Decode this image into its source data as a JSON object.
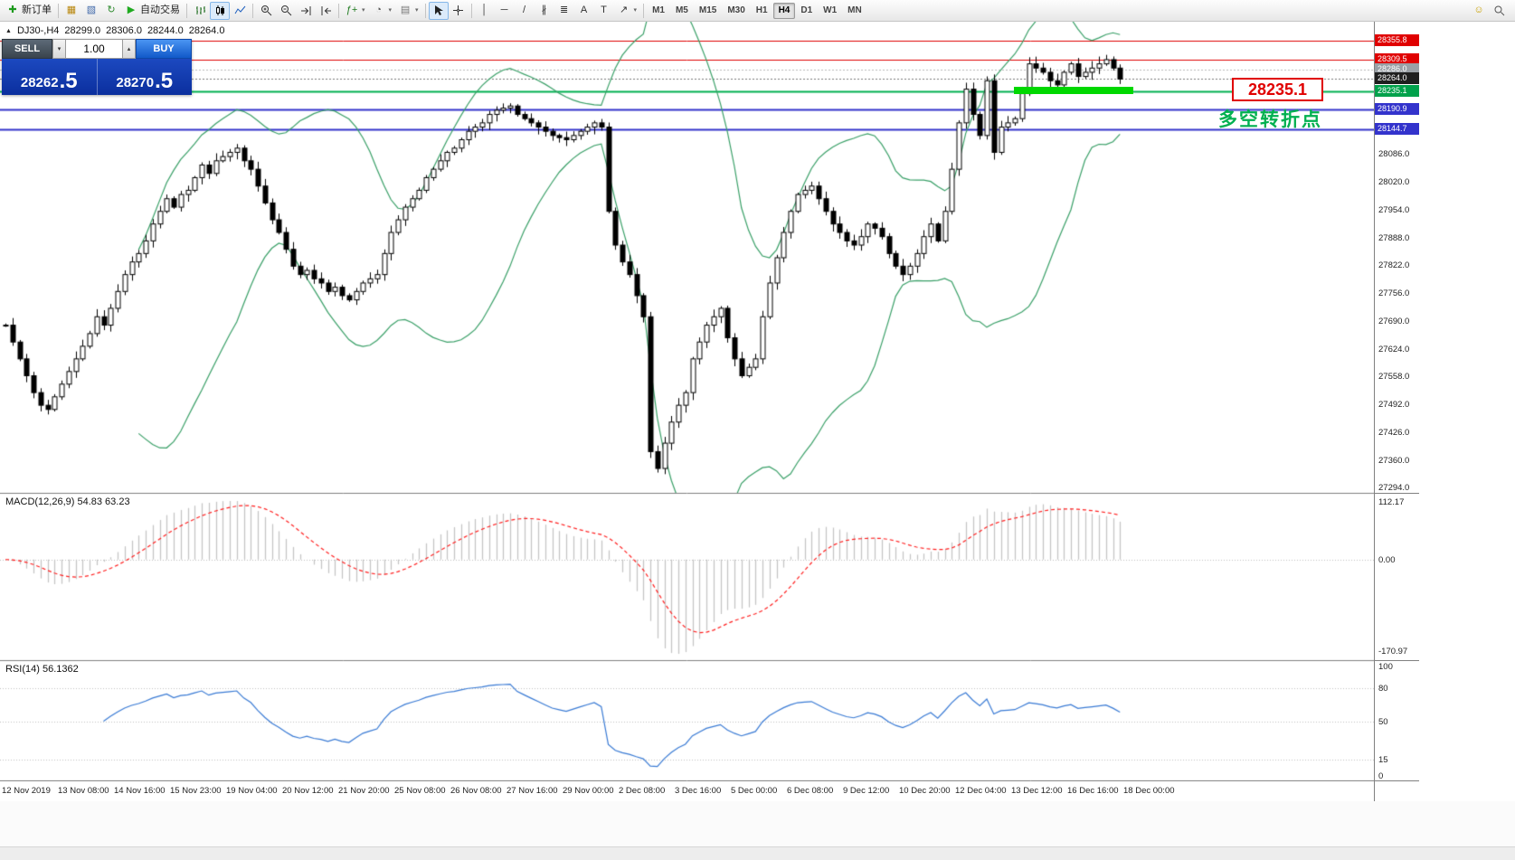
{
  "toolbar": {
    "items": [
      {
        "type": "button",
        "name": "new-order-button",
        "icon": "new-order-icon",
        "label": "新订单"
      },
      {
        "type": "sep"
      },
      {
        "type": "button",
        "name": "new-chart-button",
        "icon": "new-chart-icon"
      },
      {
        "type": "button",
        "name": "profiles-button",
        "icon": "profiles-icon"
      },
      {
        "type": "button",
        "name": "refresh-button",
        "icon": "refresh-icon"
      },
      {
        "type": "button",
        "name": "autotrading-button",
        "icon": "autotrading-icon",
        "label": "自动交易"
      },
      {
        "type": "sep"
      },
      {
        "type": "button",
        "name": "bar-chart-button",
        "icon": "bar-chart-icon"
      },
      {
        "type": "button",
        "name": "candlestick-chart-button",
        "icon": "candlestick-chart-icon",
        "active": true
      },
      {
        "type": "button",
        "name": "line-chart-button",
        "icon": "line-chart-icon"
      },
      {
        "type": "sep"
      },
      {
        "type": "button",
        "name": "zoom-in-button",
        "icon": "zoom-in-icon"
      },
      {
        "type": "button",
        "name": "zoom-out-button",
        "icon": "zoom-out-icon"
      },
      {
        "type": "button",
        "name": "auto-scroll-button",
        "icon": "auto-scroll-icon"
      },
      {
        "type": "button",
        "name": "chart-shift-button",
        "icon": "chart-shift-icon"
      },
      {
        "type": "sep"
      },
      {
        "type": "button",
        "name": "indicators-button",
        "icon": "indicators-icon",
        "dropdown": true
      },
      {
        "type": "button",
        "name": "periods-button",
        "icon": "periods-icon",
        "dropdown": true
      },
      {
        "type": "button",
        "name": "templates-button",
        "icon": "templates-icon",
        "dropdown": true
      },
      {
        "type": "sep"
      },
      {
        "type": "button",
        "name": "cursor-button",
        "icon": "cursor-icon",
        "active": true
      },
      {
        "type": "button",
        "name": "crosshair-button",
        "icon": "crosshair-icon"
      },
      {
        "type": "sep"
      },
      {
        "type": "button",
        "name": "vertical-line-button",
        "icon": "vertical-line-icon"
      },
      {
        "type": "button",
        "name": "horizontal-line-button",
        "icon": "horizontal-line-icon"
      },
      {
        "type": "button",
        "name": "trendline-button",
        "icon": "trendline-icon"
      },
      {
        "type": "button",
        "name": "channel-button",
        "icon": "channel-icon"
      },
      {
        "type": "button",
        "name": "fibonacci-button",
        "icon": "fibonacci-icon"
      },
      {
        "type": "button",
        "name": "text-button",
        "icon": "text-icon"
      },
      {
        "type": "button",
        "name": "label-button",
        "icon": "label-icon"
      },
      {
        "type": "button",
        "name": "arrows-button",
        "icon": "arrows-icon",
        "dropdown": true
      },
      {
        "type": "sep"
      }
    ],
    "timeframes": {
      "items": [
        "M1",
        "M5",
        "M15",
        "M30",
        "H1",
        "H4",
        "D1",
        "W1",
        "MN"
      ],
      "active": "H4"
    },
    "right_buttons": [
      {
        "name": "community-button",
        "icon": "community-icon"
      },
      {
        "name": "search-button",
        "icon": "search-icon"
      }
    ]
  },
  "chart": {
    "ohlc_header": {
      "marker": "▲",
      "symbol_period": "DJ30-,H4",
      "open": "28299.0",
      "high": "28306.0",
      "low": "28244.0",
      "close": "28264.0"
    },
    "trade_panel": {
      "sell_label": "SELL",
      "buy_label": "BUY",
      "volume": "1.00",
      "volume_down_glyph": "▾",
      "volume_up_glyph": "▴",
      "sell_price": "28262.5",
      "buy_price": "28270.5"
    },
    "annotations": {
      "price_callout": "28235.1",
      "turning_point_text": "多空转折点"
    },
    "lines": [
      {
        "label": "28355.8",
        "price": 28355.8,
        "color": "#e00000",
        "badge": "#e00000",
        "style": "solid",
        "width": 1
      },
      {
        "label": "28309.5",
        "price": 28309.5,
        "color": "#e00000",
        "badge": "#e00000",
        "style": "solid",
        "width": 1
      },
      {
        "label": "28286.0",
        "price": 28286.0,
        "color": "#b8b8b8",
        "badge": "#9aa0a6",
        "style": "dotted",
        "width": 1
      },
      {
        "label": "28264.0",
        "price": 28264.0,
        "color": "#777777",
        "badge": "#1f1f1f",
        "style": "dotted",
        "width": 1
      },
      {
        "label": "28235.1",
        "price": 28235.1,
        "color": "#00b050",
        "badge": "#00a14b",
        "style": "solid",
        "width": 2
      },
      {
        "label": "28190.9",
        "price": 28190.9,
        "color": "#3333cc",
        "badge": "#3333cc",
        "style": "solid",
        "width": 2
      },
      {
        "label": "28144.7",
        "price": 28144.7,
        "color": "#3333cc",
        "badge": "#3333cc",
        "style": "solid",
        "width": 2
      }
    ],
    "price_scale_ticks": [
      "28086.0",
      "28020.0",
      "27954.0",
      "27888.0",
      "27822.0",
      "27756.0",
      "27690.0",
      "27624.0",
      "27558.0",
      "27492.0",
      "27426.0",
      "27360.0",
      "27294.0"
    ],
    "indicators": {
      "macd": {
        "label": "MACD(12,26,9) 54.83 63.23",
        "scale": [
          "112.17",
          "0.00",
          "-170.97"
        ]
      },
      "rsi": {
        "label": "RSI(14) 56.1362",
        "scale": [
          "100",
          "80",
          "50",
          "15",
          "0"
        ],
        "levels": [
          80,
          50,
          15
        ]
      }
    },
    "time_axis": [
      "12 Nov 2019",
      "13 Nov 08:00",
      "14 Nov 16:00",
      "15 Nov 23:00",
      "19 Nov 04:00",
      "20 Nov 12:00",
      "21 Nov 20:00",
      "25 Nov 08:00",
      "26 Nov 08:00",
      "27 Nov 16:00",
      "29 Nov 00:00",
      "2 Dec 08:00",
      "3 Dec 16:00",
      "5 Dec 00:00",
      "6 Dec 08:00",
      "9 Dec 12:00",
      "10 Dec 20:00",
      "12 Dec 04:00",
      "13 Dec 12:00",
      "16 Dec 16:00",
      "18 Dec 00:00"
    ]
  },
  "chart_data": [
    {
      "type": "candlestick",
      "title": "DJ30-,H4",
      "symbol": "DJ30-",
      "timeframe": "H4",
      "last_ohlc": {
        "open": 28299.0,
        "high": 28306.0,
        "low": 28244.0,
        "close": 28264.0
      },
      "y_range": [
        27280,
        28400
      ],
      "overlays": [
        {
          "name": "Bollinger Bands (20, 2)",
          "color": "#3aa068"
        }
      ],
      "closes": [
        27680,
        27640,
        27600,
        27560,
        27520,
        27490,
        27480,
        27510,
        27540,
        27570,
        27600,
        27630,
        27660,
        27700,
        27680,
        27720,
        27760,
        27800,
        27830,
        27850,
        27880,
        27920,
        27950,
        27980,
        27960,
        27990,
        28000,
        28030,
        28060,
        28040,
        28070,
        28080,
        28090,
        28100,
        28070,
        28050,
        28010,
        27970,
        27930,
        27900,
        27860,
        27820,
        27800,
        27810,
        27790,
        27780,
        27760,
        27770,
        27750,
        27740,
        27760,
        27780,
        27790,
        27800,
        27850,
        27900,
        27930,
        27960,
        27980,
        28000,
        28030,
        28050,
        28070,
        28090,
        28100,
        28120,
        28140,
        28150,
        28160,
        28180,
        28190,
        28195,
        28200,
        28180,
        28170,
        28160,
        28150,
        28140,
        28130,
        28125,
        28120,
        28130,
        28140,
        28150,
        28160,
        28150,
        27950,
        27870,
        27830,
        27800,
        27750,
        27700,
        27380,
        27340,
        27400,
        27450,
        27490,
        27520,
        27600,
        27640,
        27680,
        27700,
        27720,
        27650,
        27600,
        27560,
        27580,
        27600,
        27700,
        27780,
        27840,
        27900,
        27950,
        27990,
        28000,
        28010,
        27980,
        27950,
        27920,
        27900,
        27880,
        27870,
        27890,
        27920,
        27910,
        27890,
        27850,
        27820,
        27800,
        27820,
        27850,
        27890,
        27920,
        27880,
        27950,
        28050,
        28160,
        28240,
        28180,
        28130,
        28260,
        28090,
        28150,
        28160,
        28170,
        28230,
        28300,
        28290,
        28280,
        28260,
        28250,
        28280,
        28300,
        28270,
        28280,
        28290,
        28300,
        28310,
        28290,
        28264
      ]
    },
    {
      "type": "bar",
      "title": "MACD(12,26,9)",
      "displayed_values": "54.83 63.23",
      "derived_from": "closes",
      "y_ticks": [
        112.17,
        0.0,
        -170.97
      ]
    },
    {
      "type": "line",
      "title": "RSI(14)",
      "last_value": 56.1362,
      "derived_from": "closes",
      "levels": [
        80,
        50,
        15
      ],
      "y_range": [
        0,
        100
      ]
    }
  ],
  "colors": {
    "bollinger": "#3aa068",
    "candle_up": "#ffffff",
    "candle_down": "#000000",
    "candle_outline": "#000000",
    "macd_hist": "#c4c4c4",
    "macd_signal": "#ff2020",
    "rsi_line": "#3a7bd5",
    "level_line": "#c0c0c0",
    "highlight_bar": "#00d800",
    "annotation_green": "#00b050",
    "annotation_red": "#e00000"
  }
}
